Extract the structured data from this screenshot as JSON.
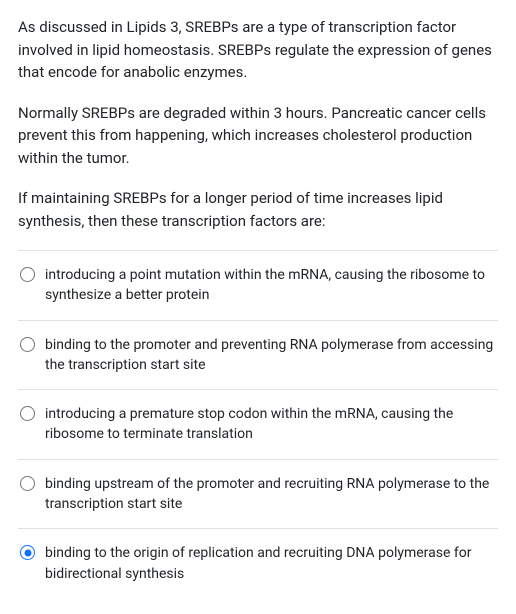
{
  "question": {
    "paragraphs": [
      "As discussed in Lipids 3, SREBPs are a type of transcription factor involved in lipid homeostasis. SREBPs regulate the expression of genes that encode for anabolic enzymes.",
      "Normally SREBPs are degraded within 3 hours. Pancreatic cancer cells prevent this from happening, which increases cholesterol production within the tumor.",
      "If maintaining SREBPs for a longer period of time increases lipid synthesis, then these transcription factors are:"
    ]
  },
  "options": [
    {
      "label": "introducing a point mutation within the mRNA, causing the ribosome to synthesize a better protein",
      "selected": false
    },
    {
      "label": "binding to the promoter and preventing RNA polymerase from accessing the transcription start site",
      "selected": false
    },
    {
      "label": "introducing a premature stop codon within the mRNA, causing the ribosome to terminate translation",
      "selected": false
    },
    {
      "label": "binding upstream of the promoter and recruiting RNA polymerase to the transcription start site",
      "selected": false
    },
    {
      "label": "binding to the origin of replication and recruiting DNA polymerase for bidirectional synthesis",
      "selected": true
    }
  ],
  "colors": {
    "text": "#212529",
    "border": "#dee2e6",
    "radio_border": "#6c757d",
    "radio_selected": "#0d6efd",
    "background": "#ffffff"
  }
}
